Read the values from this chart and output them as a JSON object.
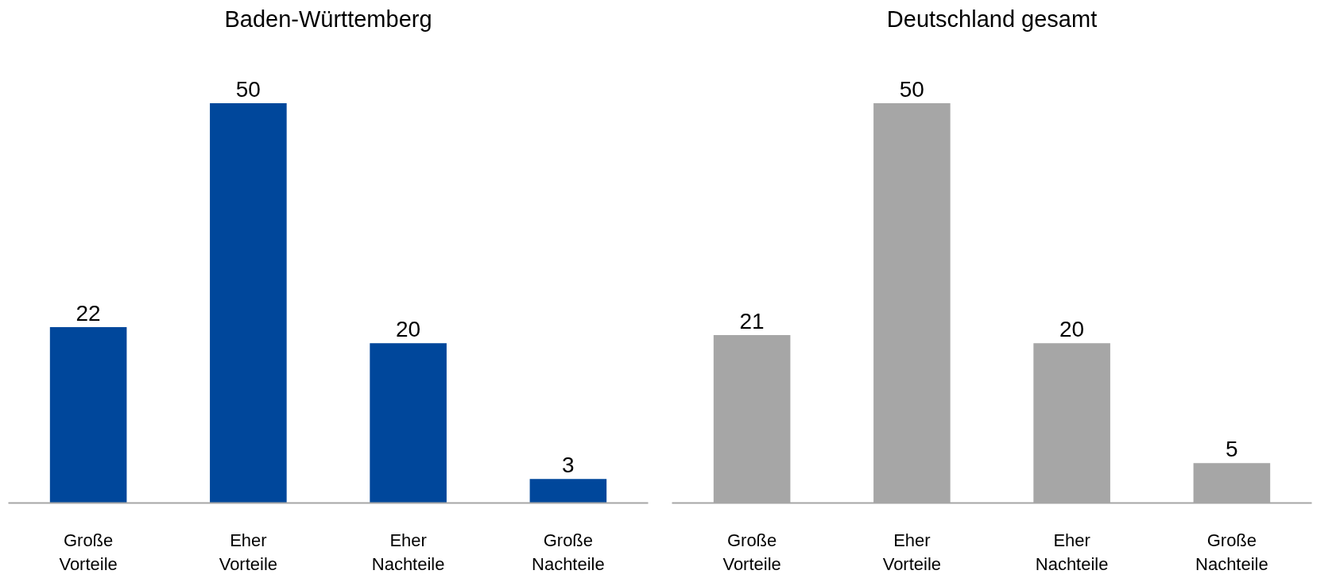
{
  "chart_data": [
    {
      "type": "bar",
      "title": "Baden-Württemberg",
      "categories": [
        "Große\nVorteile",
        "Eher\nVorteile",
        "Eher\nNachteile",
        "Große\nNachteile"
      ],
      "values": [
        22,
        50,
        20,
        3
      ],
      "color": "#00479b",
      "data_labels": true,
      "grid": false,
      "tick_labels": "x"
    },
    {
      "type": "bar",
      "title": "Deutschland gesamt",
      "categories": [
        "Große\nVorteile",
        "Eher\nVorteile",
        "Eher\nNachteile",
        "Große\nNachteile"
      ],
      "values": [
        21,
        50,
        20,
        5
      ],
      "color": "#a6a6a6",
      "data_labels": true,
      "grid": false,
      "tick_labels": "x"
    }
  ]
}
